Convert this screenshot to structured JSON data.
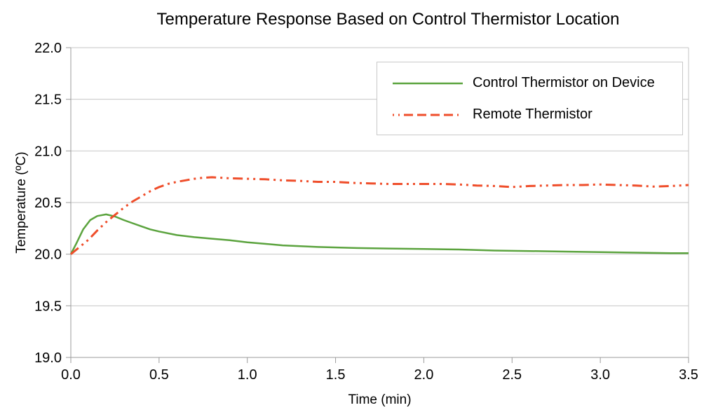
{
  "chart_data": {
    "type": "line",
    "title": "Temperature Response Based on Control Thermistor Location",
    "xlabel": "Time (min)",
    "ylabel": "Temperature (ºC)",
    "xlim": [
      0.0,
      3.5
    ],
    "ylim": [
      19.0,
      22.0
    ],
    "x_ticks": [
      "0.0",
      "0.5",
      "1.0",
      "1.5",
      "2.0",
      "2.5",
      "3.0",
      "3.5"
    ],
    "y_ticks": [
      "19.0",
      "19.5",
      "20.0",
      "20.5",
      "21.0",
      "21.5",
      "22.0"
    ],
    "grid": "horizontal",
    "grid_color": "#c6c6c6",
    "axis_color": "#9b9b9b",
    "legend_position": "top-right",
    "series": [
      {
        "name": "Control Thermistor on Device",
        "color": "#5ba33e",
        "style": "solid",
        "x": [
          0.0,
          0.03,
          0.07,
          0.11,
          0.15,
          0.2,
          0.25,
          0.3,
          0.35,
          0.4,
          0.45,
          0.5,
          0.6,
          0.7,
          0.8,
          0.9,
          1.0,
          1.1,
          1.2,
          1.4,
          1.6,
          1.8,
          2.0,
          2.2,
          2.4,
          2.6,
          2.8,
          3.0,
          3.2,
          3.4,
          3.5
        ],
        "y": [
          20.0,
          20.1,
          20.24,
          20.33,
          20.37,
          20.385,
          20.365,
          20.33,
          20.3,
          20.27,
          20.24,
          20.22,
          20.185,
          20.165,
          20.15,
          20.135,
          20.115,
          20.1,
          20.085,
          20.07,
          20.06,
          20.055,
          20.05,
          20.045,
          20.035,
          20.03,
          20.025,
          20.02,
          20.015,
          20.01,
          20.01
        ]
      },
      {
        "name": "Remote Thermistor",
        "color": "#ef4e2b",
        "style": "dash-dot-dot",
        "x": [
          0.0,
          0.05,
          0.1,
          0.15,
          0.2,
          0.25,
          0.3,
          0.35,
          0.4,
          0.45,
          0.5,
          0.55,
          0.6,
          0.65,
          0.7,
          0.75,
          0.8,
          0.85,
          0.9,
          1.0,
          1.1,
          1.2,
          1.3,
          1.4,
          1.5,
          1.6,
          1.7,
          1.8,
          1.9,
          2.0,
          2.1,
          2.2,
          2.3,
          2.4,
          2.5,
          2.6,
          2.7,
          2.8,
          2.9,
          3.0,
          3.1,
          3.2,
          3.3,
          3.4,
          3.5
        ],
        "y": [
          20.0,
          20.07,
          20.14,
          20.23,
          20.31,
          20.38,
          20.45,
          20.51,
          20.56,
          20.61,
          20.65,
          20.68,
          20.7,
          20.715,
          20.73,
          20.74,
          20.745,
          20.74,
          20.735,
          20.73,
          20.725,
          20.715,
          20.71,
          20.7,
          20.7,
          20.69,
          20.685,
          20.68,
          20.68,
          20.68,
          20.68,
          20.675,
          20.665,
          20.66,
          20.65,
          20.66,
          20.665,
          20.67,
          20.67,
          20.675,
          20.67,
          20.665,
          20.655,
          20.66,
          20.67
        ]
      }
    ]
  }
}
